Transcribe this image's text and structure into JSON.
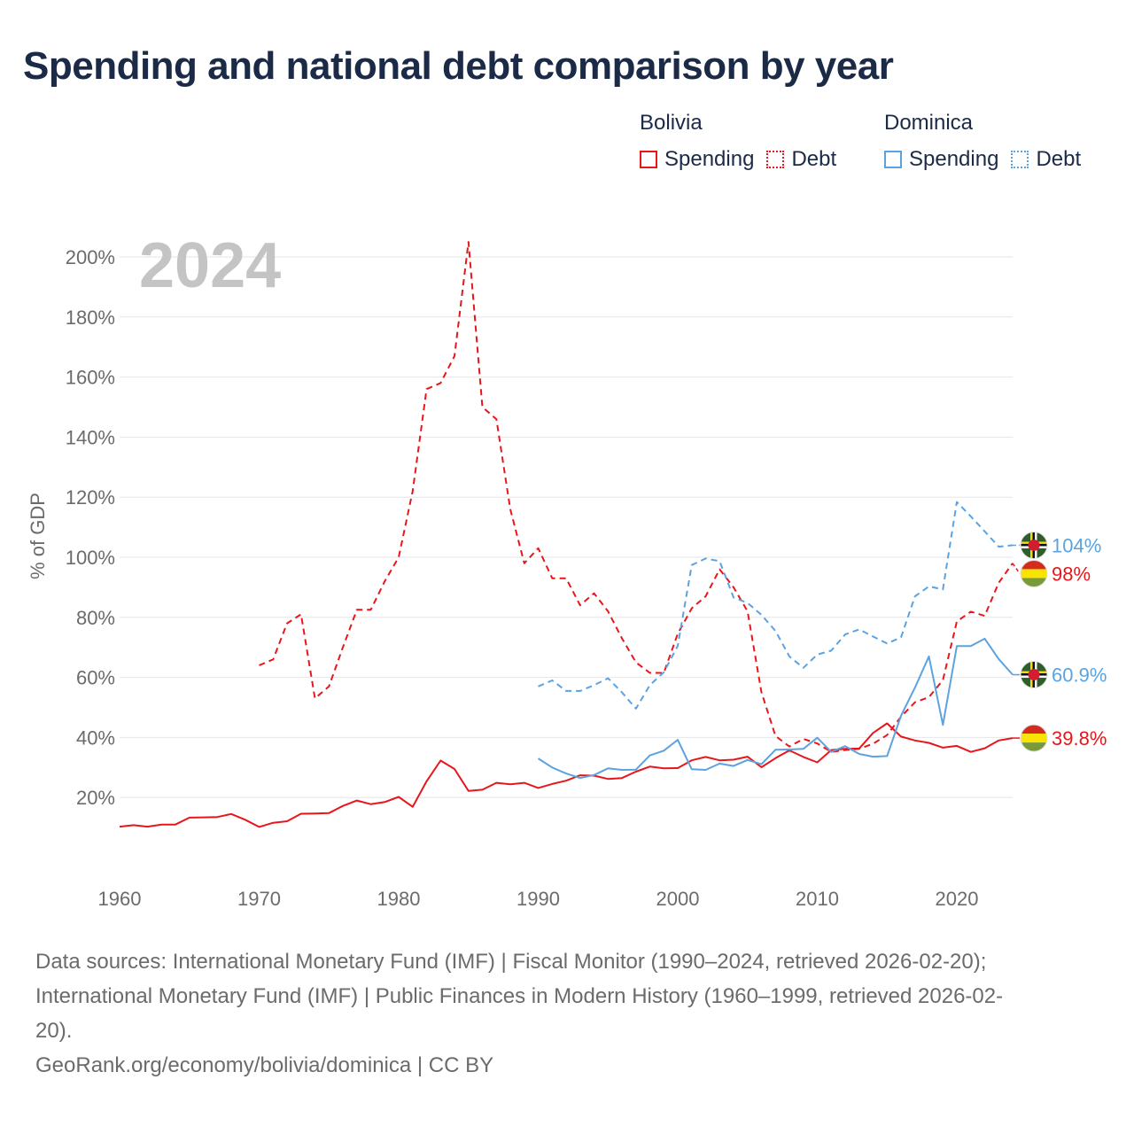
{
  "title": "Spending and national debt comparison by year",
  "legend": {
    "groups": [
      {
        "country": "Bolivia",
        "color": "#e8161b",
        "items": [
          {
            "label": "Spending",
            "style": "solid"
          },
          {
            "label": "Debt",
            "style": "dotted"
          }
        ]
      },
      {
        "country": "Dominica",
        "color": "#5ba3e0",
        "items": [
          {
            "label": "Spending",
            "style": "solid"
          },
          {
            "label": "Debt",
            "style": "dotted"
          }
        ]
      }
    ]
  },
  "chart_data": {
    "type": "line",
    "year_watermark": "2024",
    "ylabel": "% of GDP",
    "xlim": [
      1960,
      2024
    ],
    "ylim": [
      0,
      200
    ],
    "x_ticks": [
      1960,
      1970,
      1980,
      1990,
      2000,
      2010,
      2020
    ],
    "y_ticks": [
      20,
      40,
      60,
      80,
      100,
      120,
      140,
      160,
      180,
      200
    ],
    "y_tick_labels": [
      "20%",
      "40%",
      "60%",
      "80%",
      "100%",
      "120%",
      "140%",
      "160%",
      "180%",
      "200%"
    ],
    "series": [
      {
        "name": "Bolivia Spending",
        "country": "Bolivia",
        "metric": "Spending",
        "color": "#e8161b",
        "dash": "solid",
        "end_label": "39.8%",
        "flag": "bolivia",
        "x": [
          1960,
          1961,
          1962,
          1963,
          1964,
          1965,
          1966,
          1967,
          1968,
          1969,
          1970,
          1971,
          1972,
          1973,
          1974,
          1975,
          1976,
          1977,
          1978,
          1979,
          1980,
          1981,
          1982,
          1983,
          1984,
          1985,
          1986,
          1987,
          1988,
          1989,
          1990,
          1991,
          1992,
          1993,
          1994,
          1995,
          1996,
          1997,
          1998,
          1999,
          2000,
          2001,
          2002,
          2003,
          2004,
          2005,
          2006,
          2007,
          2008,
          2009,
          2010,
          2011,
          2012,
          2013,
          2014,
          2015,
          2016,
          2017,
          2018,
          2019,
          2020,
          2021,
          2022,
          2023,
          2024
        ],
        "y": [
          10.3,
          10.8,
          10.3,
          11,
          11,
          13.3,
          13.4,
          13.5,
          14.5,
          12.6,
          10.2,
          11.6,
          12.1,
          14.6,
          14.7,
          14.8,
          17.2,
          19,
          17.8,
          18.5,
          20.2,
          16.9,
          25.4,
          32.3,
          29.5,
          22.2,
          22.6,
          24.9,
          24.4,
          24.9,
          23.2,
          24.5,
          25.6,
          27.4,
          27.3,
          26.2,
          26.5,
          28.6,
          30.3,
          29.7,
          29.8,
          32.4,
          33.5,
          32.4,
          32.6,
          33.6,
          30.1,
          33.1,
          35.7,
          33.5,
          31.7,
          35.8,
          36.2,
          36.3,
          41.5,
          44.7,
          40.3,
          39,
          38.2,
          36.6,
          37.2,
          35.2,
          36.4,
          39,
          39.8
        ]
      },
      {
        "name": "Bolivia Debt",
        "country": "Bolivia",
        "metric": "Debt",
        "color": "#e8161b",
        "dash": "dashed",
        "end_label": "98%",
        "flag": "bolivia",
        "x": [
          1970,
          1971,
          1972,
          1973,
          1974,
          1975,
          1976,
          1977,
          1978,
          1979,
          1980,
          1981,
          1982,
          1983,
          1984,
          1985,
          1986,
          1987,
          1988,
          1989,
          1990,
          1991,
          1992,
          1993,
          1994,
          1995,
          1996,
          1997,
          1998,
          1999,
          2000,
          2001,
          2002,
          2003,
          2004,
          2005,
          2006,
          2007,
          2008,
          2009,
          2010,
          2011,
          2012,
          2013,
          2014,
          2015,
          2016,
          2017,
          2018,
          2019,
          2020,
          2021,
          2022,
          2023,
          2024
        ],
        "y": [
          64,
          66,
          78,
          81,
          53,
          57,
          70,
          82.5,
          82.5,
          92,
          100,
          122,
          156,
          158,
          167,
          205,
          150,
          146,
          116,
          98,
          103,
          93,
          93,
          84,
          88,
          82,
          73,
          65,
          61.5,
          61.5,
          74.5,
          83,
          87,
          96,
          90,
          82,
          55,
          40.5,
          37,
          39.5,
          38,
          35.2,
          35.8,
          36.2,
          37.9,
          40.8,
          46.9,
          51.7,
          53.4,
          59.1,
          78.6,
          81.9,
          80.5,
          91.5,
          98
        ]
      },
      {
        "name": "Dominica Spending",
        "country": "Dominica",
        "metric": "Spending",
        "color": "#5ba3e0",
        "dash": "solid",
        "end_label": "60.9%",
        "flag": "dominica",
        "x": [
          1990,
          1991,
          1992,
          1993,
          1994,
          1995,
          1996,
          1997,
          1998,
          1999,
          2000,
          2001,
          2002,
          2003,
          2004,
          2005,
          2006,
          2007,
          2008,
          2009,
          2010,
          2011,
          2012,
          2013,
          2014,
          2015,
          2016,
          2017,
          2018,
          2019,
          2020,
          2021,
          2022,
          2023,
          2024
        ],
        "y": [
          33,
          30,
          28,
          26.5,
          27.5,
          29.7,
          29.2,
          29.3,
          34,
          35.6,
          39.2,
          29.4,
          29.2,
          31.3,
          30.5,
          32.5,
          31.1,
          35.9,
          36,
          36.2,
          39.9,
          35.2,
          37.1,
          34.5,
          33.6,
          33.8,
          47.2,
          56.6,
          67,
          44.2,
          70.4,
          70.4,
          72.9,
          66.1,
          60.9
        ]
      },
      {
        "name": "Dominica Debt",
        "country": "Dominica",
        "metric": "Debt",
        "color": "#5ba3e0",
        "dash": "dashed",
        "end_label": "104%",
        "flag": "dominica",
        "x": [
          1990,
          1991,
          1992,
          1993,
          1994,
          1995,
          1996,
          1997,
          1998,
          1999,
          2000,
          2001,
          2002,
          2003,
          2004,
          2005,
          2006,
          2007,
          2008,
          2009,
          2010,
          2011,
          2012,
          2013,
          2014,
          2015,
          2016,
          2017,
          2018,
          2019,
          2020,
          2021,
          2022,
          2023,
          2024
        ],
        "y": [
          57,
          59,
          55.5,
          55.5,
          57.4,
          59.7,
          55,
          49.6,
          57.4,
          61.7,
          70.5,
          97.4,
          99.6,
          98.7,
          86.6,
          84.8,
          80.8,
          75.5,
          67,
          63.2,
          67.6,
          68.9,
          74.3,
          76,
          73.6,
          71.3,
          73.3,
          87,
          90.3,
          89.3,
          118.4,
          113.6,
          108.6,
          103.5,
          104
        ]
      }
    ]
  },
  "footer": {
    "sources_line1": "Data sources: International Monetary Fund (IMF) | Fiscal Monitor (1990–2024, retrieved 2026-02-20);",
    "sources_line2": "International Monetary Fund (IMF) | Public Finances in Modern History (1960–1999, retrieved 2026-02-",
    "sources_line3": "20).",
    "credit": "GeoRank.org/economy/bolivia/dominica | CC BY"
  }
}
